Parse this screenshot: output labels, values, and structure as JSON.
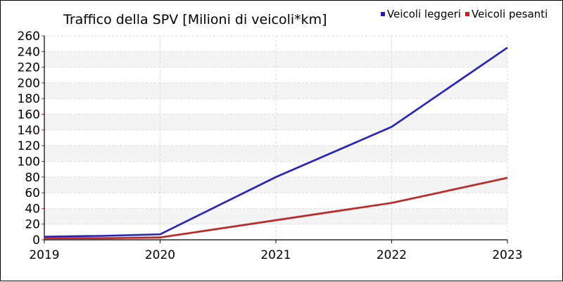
{
  "chart_data": {
    "type": "line",
    "title": "Traffico della SPV [Milioni di veicoli*km]",
    "xlabel": "",
    "ylabel": "",
    "x": [
      2019,
      2019.5,
      2020,
      2021,
      2022,
      2023
    ],
    "x_ticks": [
      "2019",
      "2020",
      "2021",
      "2022",
      "2023"
    ],
    "xlim": [
      2019,
      2023
    ],
    "ylim": [
      0,
      260
    ],
    "y_ticks": [
      "0",
      "20",
      "40",
      "60",
      "80",
      "100",
      "120",
      "140",
      "160",
      "180",
      "200",
      "220",
      "240",
      "260"
    ],
    "grid": true,
    "legend_position": "top-right",
    "series": [
      {
        "name": "Veicoli leggeri",
        "color": "#1c1ccc",
        "values": [
          4,
          5,
          7,
          80,
          144,
          245
        ]
      },
      {
        "name": "Veicoli pesanti",
        "color": "#cc1c1c",
        "values": [
          2,
          2,
          3,
          25,
          47,
          79
        ]
      }
    ]
  }
}
